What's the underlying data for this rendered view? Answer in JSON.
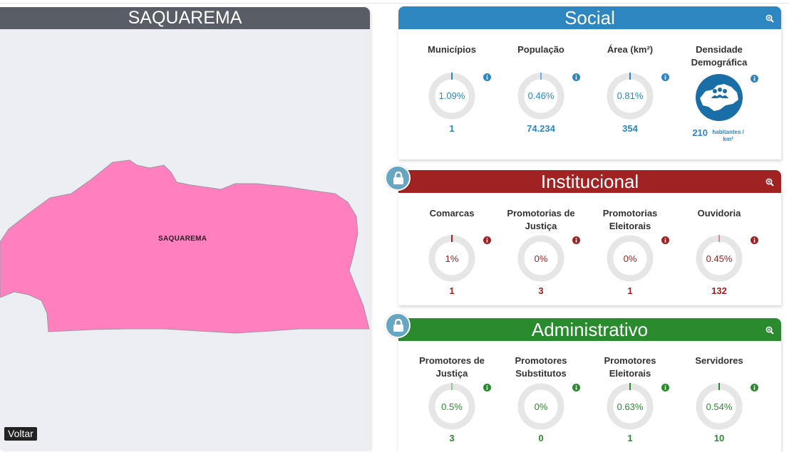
{
  "map": {
    "title": "SAQUAREMA",
    "region_label": "SAQUAREMA",
    "back_label": "Voltar",
    "fill_color": "#ff7fbf"
  },
  "social": {
    "title": "Social",
    "color": "#2e86c1",
    "metrics": [
      {
        "label": "Municípios",
        "percent": "1.09%",
        "value": "1"
      },
      {
        "label": "População",
        "percent": "0.46%",
        "value": "74.234"
      },
      {
        "label": "Área (km²)",
        "percent": "0.81%",
        "value": "354"
      },
      {
        "label": "Densidade Demográfica",
        "value": "210",
        "unit": "habitantes / km²",
        "icon": "population-map-icon"
      }
    ]
  },
  "institucional": {
    "title": "Institucional",
    "color": "#a02223",
    "metrics": [
      {
        "label": "Comarcas",
        "percent": "1%",
        "value": "1"
      },
      {
        "label": "Promotorias de Justiça",
        "percent": "0%",
        "value": "3"
      },
      {
        "label": "Promotorias Eleitorais",
        "percent": "0%",
        "value": "1"
      },
      {
        "label": "Ouvidoria",
        "percent": "0.45%",
        "value": "132"
      }
    ]
  },
  "administrativo": {
    "title": "Administrativo",
    "color": "#2a8a2e",
    "metrics": [
      {
        "label": "Promotores de Justiça",
        "percent": "0.5%",
        "value": "3"
      },
      {
        "label": "Promotores Substitutos",
        "percent": "0%",
        "value": "0"
      },
      {
        "label": "Promotores Eleitorais",
        "percent": "0.63%",
        "value": "1"
      },
      {
        "label": "Servidores",
        "percent": "0.54%",
        "value": "10"
      }
    ]
  }
}
